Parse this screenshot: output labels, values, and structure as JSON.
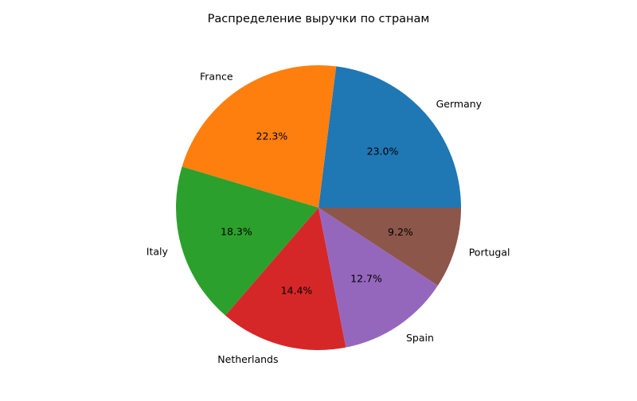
{
  "chart_data": {
    "type": "pie",
    "title": "Распределение выручки по странам",
    "start_angle_deg": 0,
    "direction": "counterclockwise",
    "slices": [
      {
        "label": "Germany",
        "value": 23.0,
        "pct_label": "23.0%",
        "color": "#1f77b4"
      },
      {
        "label": "France",
        "value": 22.3,
        "pct_label": "22.3%",
        "color": "#ff7f0e"
      },
      {
        "label": "Italy",
        "value": 18.3,
        "pct_label": "18.3%",
        "color": "#2ca02c"
      },
      {
        "label": "Netherlands",
        "value": 14.4,
        "pct_label": "14.4%",
        "color": "#d62728"
      },
      {
        "label": "Spain",
        "value": 12.7,
        "pct_label": "12.7%",
        "color": "#9467bd"
      },
      {
        "label": "Portugal",
        "value": 9.2,
        "pct_label": "9.2%",
        "color": "#8c564b"
      }
    ]
  }
}
